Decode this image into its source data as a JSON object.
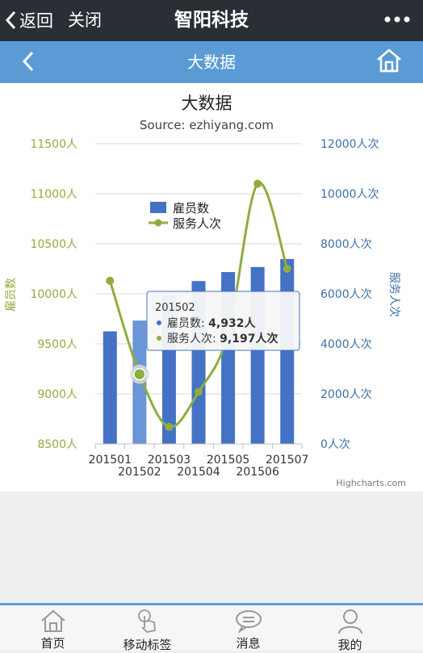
{
  "topbar": {
    "back_label": "返回",
    "close_label": "关闭",
    "title": "智阳科技",
    "more_icon": "more-dots-icon"
  },
  "navbar": {
    "title": "大数据",
    "back_icon": "chevron-left-icon",
    "home_icon": "home-icon"
  },
  "chart_data": {
    "type": "bar+line",
    "title": "大数据",
    "subtitle": "Source: ezhiyang.com",
    "categories": [
      "201501",
      "201502",
      "201503",
      "201504",
      "201505",
      "201506",
      "201507"
    ],
    "series": [
      {
        "name": "雇员数",
        "type": "bar",
        "axis": "left",
        "color": "#4472c4",
        "values": [
          4500,
          4932,
          5920,
          6510,
          6870,
          7070,
          7390
        ]
      },
      {
        "name": "服务人次",
        "type": "spline",
        "axis": "right",
        "color": "#8fad3f",
        "values": [
          10130,
          9197,
          8670,
          9020,
          9600,
          11100,
          10250
        ]
      }
    ],
    "yaxis_left": {
      "label": "雇员数",
      "min": 8500,
      "max": 11500,
      "ticks": [
        "8500人",
        "9000人",
        "9500人",
        "10000人",
        "10500人",
        "11000人",
        "11500人"
      ],
      "color": "#8fad3f"
    },
    "yaxis_right": {
      "label": "服务人次",
      "min": 0,
      "max": 12000,
      "ticks": [
        "0人次",
        "2000人次",
        "4000人次",
        "6000人次",
        "8000人次",
        "10000人次",
        "12000人次"
      ],
      "color": "#3d6fa8"
    },
    "legend": {
      "placement": "center"
    },
    "tooltip": {
      "category": "201502",
      "line1_label": "雇员数: ",
      "line1_value": "4,932人",
      "line2_label": "服务人次: ",
      "line2_value": "9,197人次"
    },
    "grid": true,
    "credits": "Highcharts.com"
  },
  "tabbar": [
    {
      "label": "首页",
      "icon": "home-icon"
    },
    {
      "label": "移动标签",
      "icon": "hand-tap-icon"
    },
    {
      "label": "消息",
      "icon": "message-icon"
    },
    {
      "label": "我的",
      "icon": "user-icon"
    }
  ],
  "colors": {
    "topbar": "#2b2f35",
    "navbar": "#5b9bd5",
    "bar": "#4472c4",
    "line": "#8fad3f",
    "right_axis_text": "#3d6fa8"
  }
}
